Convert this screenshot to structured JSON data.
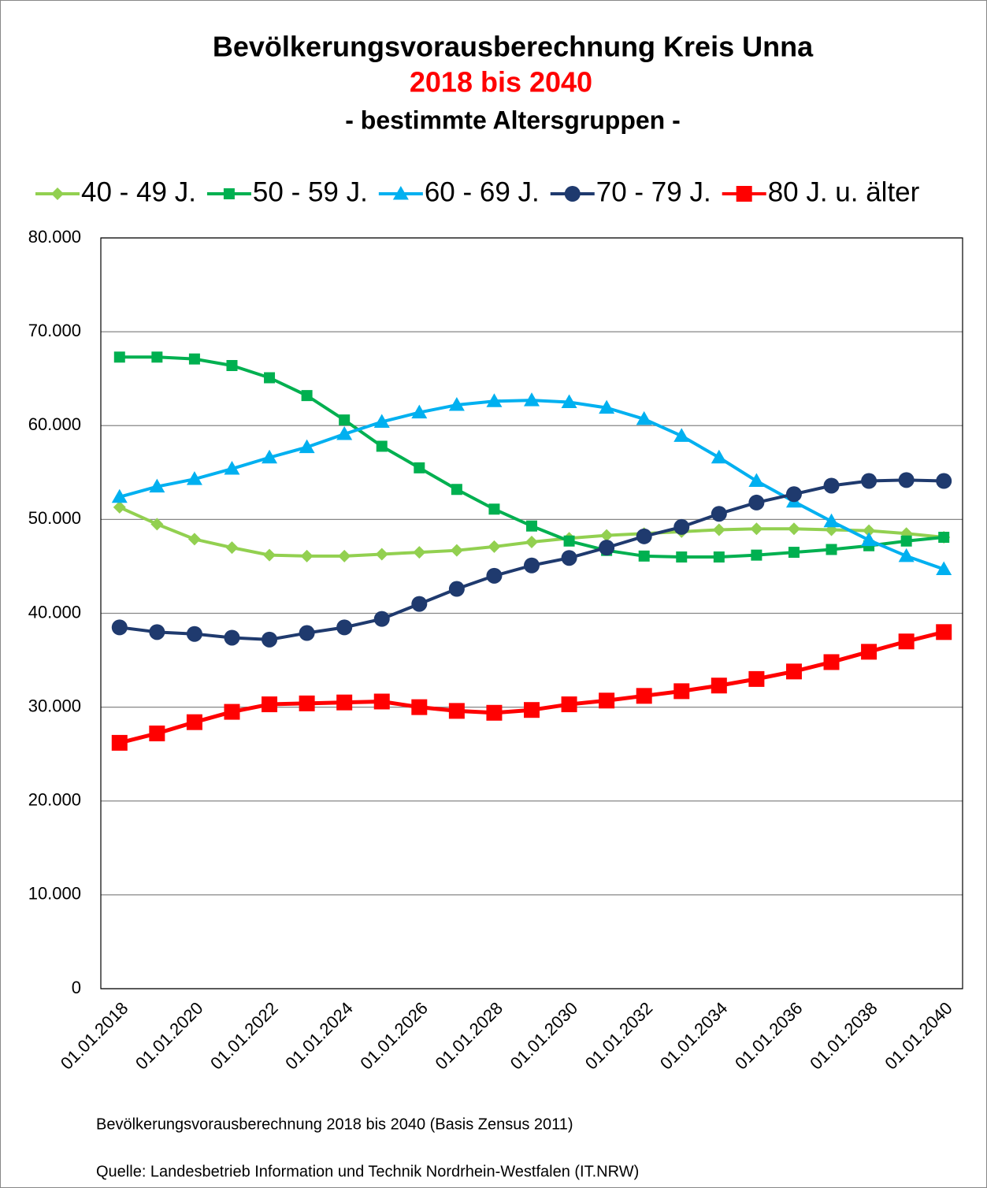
{
  "chart_data": {
    "type": "line",
    "title": "Bevölkerungsvorausberechnung Kreis Unna",
    "subtitle": "2018 bis 2040",
    "subtitle2": "- bestimmte Altersgruppen -",
    "notes": [
      "Bevölkerungsvorausberechnung 2018 bis 2040 (Basis Zensus 2011)",
      "Quelle: Landesbetrieb Information und Technik Nordrhein-Westfalen (IT.NRW)"
    ],
    "legend": "top",
    "grid": true,
    "categories": [
      "01.01.2018",
      null,
      "01.01.2020",
      null,
      "01.01.2022",
      null,
      "01.01.2024",
      null,
      "01.01.2026",
      null,
      "01.01.2028",
      null,
      "01.01.2030",
      null,
      "01.01.2032",
      null,
      "01.01.2034",
      null,
      "01.01.2036",
      null,
      "01.01.2038",
      null,
      "01.01.2040"
    ],
    "ylim": [
      0,
      80000
    ],
    "yticks": [
      0,
      {
        "value": 10000,
        "label": "10.000"
      },
      {
        "value": 20000,
        "label": "20.000"
      },
      {
        "value": 30000,
        "label": "30.000"
      },
      {
        "value": 40000,
        "label": "40.000"
      },
      {
        "value": 50000,
        "label": "50.000"
      },
      {
        "value": 60000,
        "label": "60.000"
      },
      {
        "value": 70000,
        "label": "70.000"
      },
      {
        "value": 80000,
        "label": "80.000"
      }
    ],
    "series": [
      {
        "name": "40 - 49 J.",
        "color": "#92d050",
        "marker": "diamond",
        "values": [
          51300,
          49500,
          47900,
          47000,
          46200,
          46100,
          46100,
          46300,
          46500,
          46700,
          47100,
          47600,
          48000,
          48300,
          48500,
          48700,
          48900,
          49000,
          49000,
          48900,
          48800,
          48500,
          48100
        ]
      },
      {
        "name": "50 - 59 J.",
        "color": "#00b050",
        "marker": "square",
        "values": [
          67300,
          67300,
          67100,
          66400,
          65100,
          63200,
          60600,
          57800,
          55500,
          53200,
          51100,
          49300,
          47700,
          46700,
          46100,
          46000,
          46000,
          46200,
          46500,
          46800,
          47200,
          47700,
          48100
        ]
      },
      {
        "name": "60 - 69 J.",
        "color": "#00b0f0",
        "marker": "triangle",
        "values": [
          52400,
          53500,
          54300,
          55400,
          56600,
          57700,
          59100,
          60400,
          61400,
          62200,
          62600,
          62700,
          62500,
          61900,
          60700,
          58900,
          56600,
          54100,
          51900,
          49800,
          47800,
          46100,
          44700
        ]
      },
      {
        "name": "70 - 79 J.",
        "color": "#1f3a6e",
        "marker": "circle",
        "values": [
          38500,
          38000,
          37800,
          37400,
          37200,
          37900,
          38500,
          39400,
          41000,
          42600,
          44000,
          45100,
          45900,
          47000,
          48200,
          49200,
          50600,
          51800,
          52700,
          53600,
          54100,
          54200,
          54100
        ]
      },
      {
        "name": "80 J. u. älter",
        "color": "#ff0000",
        "marker": "bigsquare",
        "values": [
          26200,
          27200,
          28400,
          29500,
          30300,
          30400,
          30500,
          30600,
          30000,
          29600,
          29400,
          29700,
          30300,
          30700,
          31200,
          31700,
          32300,
          33000,
          33800,
          34800,
          35900,
          37000,
          38000
        ]
      }
    ]
  }
}
